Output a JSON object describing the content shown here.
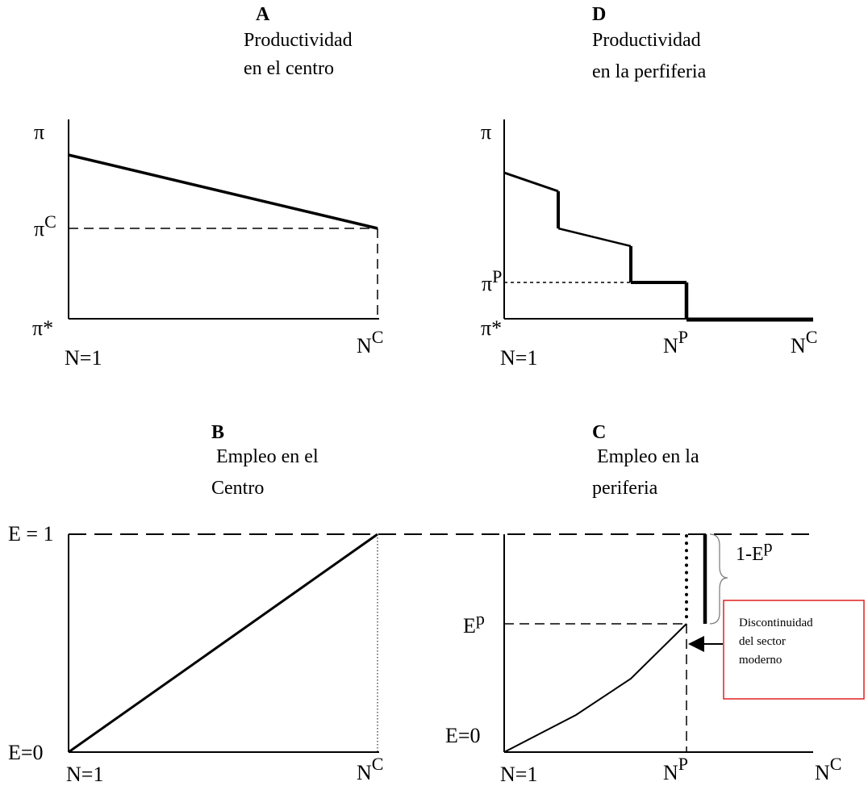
{
  "panels": {
    "A": {
      "letter": "A",
      "title_line1": "Productividad",
      "title_line2": "en el centro"
    },
    "D": {
      "letter": "D",
      "title_line1": "Productividad",
      "title_line2": "en la perfiferia"
    },
    "B": {
      "letter": "B",
      "title_line1": " Empleo en el",
      "title_line2": "Centro"
    },
    "C": {
      "letter": "C",
      "title_line1": " Empleo en la",
      "title_line2": "periferia"
    }
  },
  "labels": {
    "pi": "π",
    "pi_star": "π*",
    "pi_c_base": "π",
    "pi_c_sup": "C",
    "pi_p_base": "π",
    "pi_p_sup": "P",
    "n1": "N=1",
    "nc_base": "N",
    "nc_sup": "C",
    "np_base": "N",
    "np_sup": "P",
    "e1": "E = 1",
    "e0": "E=0",
    "ep_base": "E",
    "ep_sup": "p",
    "one_minus_ep_base": "1-E",
    "one_minus_ep_sup": "p"
  },
  "annotation": {
    "line1": "Discontinuidad",
    "line2": "del sector",
    "line3": "moderno",
    "border_color": "#e02020"
  }
}
